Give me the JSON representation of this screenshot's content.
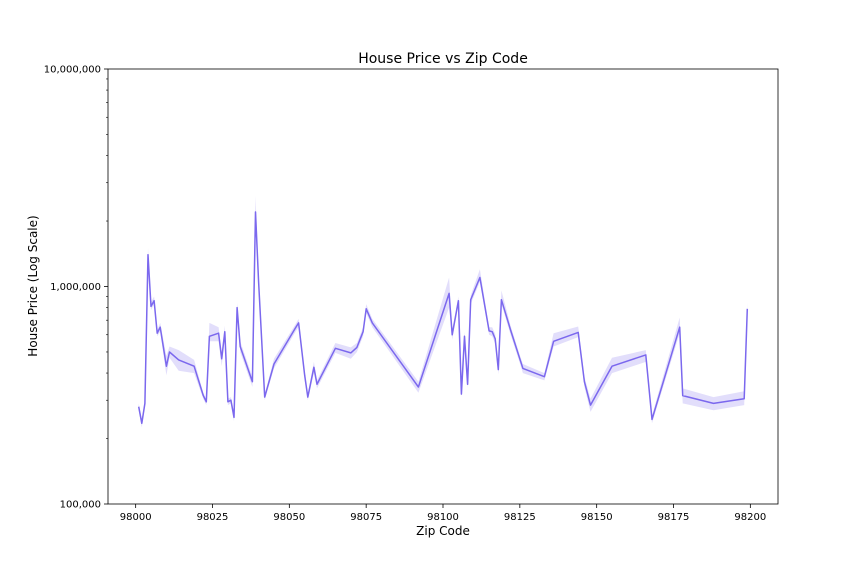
{
  "chart_data": {
    "type": "line",
    "title": "House Price vs Zip Code",
    "xlabel": "Zip Code",
    "ylabel": "House Price (Log Scale)",
    "xlim": [
      97991,
      98209
    ],
    "ylim": [
      100000,
      10000000
    ],
    "y_scale": "log",
    "x_ticks": [
      98000,
      98025,
      98050,
      98075,
      98100,
      98125,
      98150,
      98175,
      98200
    ],
    "x_tick_labels": [
      "98000",
      "98025",
      "98050",
      "98075",
      "98100",
      "98125",
      "98150",
      "98175",
      "98200"
    ],
    "y_ticks": [
      100000,
      1000000,
      10000000
    ],
    "y_tick_labels": [
      "100,000",
      "1,000,000",
      "10,000,000"
    ],
    "grid": false,
    "series": [
      {
        "color": "#7b68ee",
        "x": [
          98001,
          98002,
          98003,
          98004,
          98005,
          98006,
          98007,
          98008,
          98010,
          98011,
          98014,
          98019,
          98022,
          98023,
          98024,
          98027,
          98028,
          98029,
          98030,
          98031,
          98032,
          98033,
          98034,
          98038,
          98039,
          98040,
          98042,
          98045,
          98052,
          98053,
          98055,
          98056,
          98058,
          98059,
          98065,
          98070,
          98072,
          98074,
          98075,
          98077,
          98092,
          98102,
          98103,
          98105,
          98106,
          98107,
          98108,
          98109,
          98112,
          98115,
          98116,
          98117,
          98118,
          98119,
          98122,
          98125,
          98126,
          98133,
          98136,
          98144,
          98146,
          98148,
          98155,
          98166,
          98168,
          98177,
          98178,
          98188,
          98198,
          98199
        ],
        "y": [
          280000,
          235000,
          290000,
          1400000,
          810000,
          860000,
          610000,
          650000,
          430000,
          500000,
          460000,
          430000,
          315000,
          295000,
          590000,
          610000,
          465000,
          620000,
          295000,
          300000,
          250000,
          800000,
          530000,
          365000,
          2200000,
          1050000,
          310000,
          440000,
          645000,
          680000,
          390000,
          310000,
          425000,
          355000,
          520000,
          495000,
          525000,
          620000,
          790000,
          680000,
          345000,
          930000,
          600000,
          860000,
          320000,
          590000,
          355000,
          870000,
          1100000,
          625000,
          620000,
          575000,
          415000,
          870000,
          630000,
          465000,
          420000,
          385000,
          560000,
          615000,
          365000,
          285000,
          430000,
          485000,
          245000,
          650000,
          315000,
          290000,
          305000,
          790000
        ],
        "y_low": [
          270000,
          225000,
          280000,
          1300000,
          780000,
          830000,
          590000,
          620000,
          390000,
          470000,
          410000,
          400000,
          305000,
          285000,
          560000,
          560000,
          430000,
          580000,
          285000,
          290000,
          240000,
          760000,
          500000,
          345000,
          1900000,
          950000,
          300000,
          420000,
          620000,
          650000,
          370000,
          300000,
          400000,
          340000,
          495000,
          465000,
          500000,
          590000,
          755000,
          650000,
          325000,
          800000,
          570000,
          820000,
          310000,
          560000,
          340000,
          830000,
          1050000,
          600000,
          590000,
          545000,
          395000,
          830000,
          600000,
          445000,
          400000,
          370000,
          530000,
          585000,
          345000,
          265000,
          400000,
          450000,
          235000,
          610000,
          290000,
          270000,
          285000,
          760000
        ],
        "y_high": [
          290000,
          245000,
          300000,
          1500000,
          850000,
          900000,
          630000,
          680000,
          480000,
          530000,
          510000,
          460000,
          325000,
          305000,
          680000,
          650000,
          500000,
          660000,
          305000,
          310000,
          265000,
          840000,
          560000,
          385000,
          2600000,
          1150000,
          320000,
          465000,
          670000,
          710000,
          410000,
          320000,
          450000,
          370000,
          550000,
          525000,
          550000,
          650000,
          830000,
          710000,
          365000,
          1100000,
          630000,
          900000,
          330000,
          620000,
          370000,
          910000,
          1200000,
          650000,
          650000,
          605000,
          435000,
          960000,
          660000,
          485000,
          440000,
          400000,
          610000,
          655000,
          385000,
          305000,
          470000,
          510000,
          255000,
          720000,
          340000,
          310000,
          330000,
          840000
        ]
      }
    ]
  }
}
